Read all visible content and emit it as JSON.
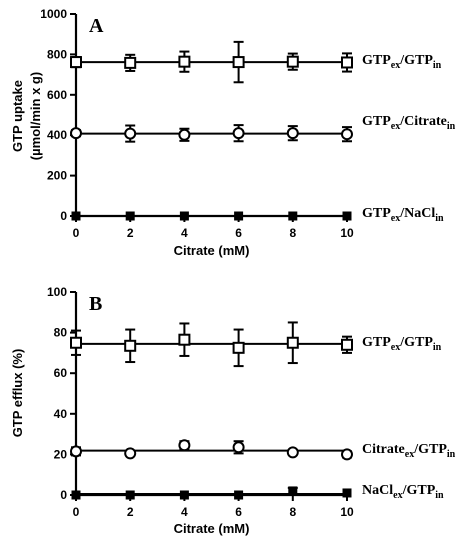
{
  "chart_data": [
    {
      "type": "line",
      "panel_label": "A",
      "xlabel": "Citrate (mM)",
      "ylabel_line1": "GTP uptake",
      "ylabel_line2": "(µmol/min x g)",
      "xlim": [
        0,
        10
      ],
      "ylim": [
        0,
        1000
      ],
      "xticks": [
        0,
        2,
        4,
        6,
        8,
        10
      ],
      "yticks": [
        0,
        200,
        400,
        600,
        800,
        1000
      ],
      "series": [
        {
          "label_parts": [
            [
              "GTP",
              ""
            ],
            [
              "ex",
              "sub"
            ],
            [
              "/GTP",
              ""
            ],
            [
              "in",
              "sub"
            ]
          ],
          "marker": "square-open",
          "x": [
            0,
            2,
            4,
            6,
            8,
            10
          ],
          "y": [
            762,
            758,
            764,
            762,
            764,
            760
          ],
          "err": [
            25,
            40,
            50,
            100,
            40,
            45
          ]
        },
        {
          "label_parts": [
            [
              "GTP",
              ""
            ],
            [
              "ex",
              "sub"
            ],
            [
              "/Citrate",
              ""
            ],
            [
              "in",
              "sub"
            ]
          ],
          "marker": "circle-open",
          "x": [
            0,
            2,
            4,
            6,
            8,
            10
          ],
          "y": [
            410,
            408,
            402,
            410,
            410,
            405
          ],
          "err": [
            15,
            40,
            30,
            40,
            35,
            35
          ]
        },
        {
          "label_parts": [
            [
              "GTP",
              ""
            ],
            [
              "ex",
              "sub"
            ],
            [
              "/NaCl",
              ""
            ],
            [
              "in",
              "sub"
            ]
          ],
          "marker": "square-filled",
          "x": [
            0,
            2,
            4,
            6,
            8,
            10
          ],
          "y": [
            0,
            0,
            0,
            0,
            0,
            0
          ],
          "err": [
            0,
            0,
            0,
            0,
            0,
            0
          ]
        }
      ]
    },
    {
      "type": "line",
      "panel_label": "B",
      "xlabel": "Citrate (mM)",
      "ylabel_line1": "GTP efflux (%)",
      "ylabel_line2": "",
      "xlim": [
        0,
        10
      ],
      "ylim": [
        0,
        100
      ],
      "xticks": [
        0,
        2,
        4,
        6,
        8,
        10
      ],
      "yticks": [
        0,
        20,
        40,
        60,
        80,
        100
      ],
      "series": [
        {
          "label_parts": [
            [
              "GTP",
              ""
            ],
            [
              "ex",
              "sub"
            ],
            [
              "/GTP",
              ""
            ],
            [
              "in",
              "sub"
            ]
          ],
          "marker": "square-open",
          "x": [
            0,
            2,
            4,
            6,
            8,
            10
          ],
          "y": [
            75,
            73.5,
            76.5,
            72.5,
            75,
            74
          ],
          "err": [
            6,
            8,
            8,
            9,
            10,
            4
          ]
        },
        {
          "label_parts": [
            [
              "Citrate",
              ""
            ],
            [
              "ex",
              "sub"
            ],
            [
              "/GTP",
              ""
            ],
            [
              "in",
              "sub"
            ]
          ],
          "marker": "circle-open",
          "x": [
            0,
            2,
            4,
            6,
            8,
            10
          ],
          "y": [
            21.5,
            20.5,
            24.5,
            23.5,
            21,
            20
          ],
          "err": [
            2,
            1,
            2,
            3,
            1,
            1.5
          ]
        },
        {
          "label_parts": [
            [
              "NaCl",
              ""
            ],
            [
              "ex",
              "sub"
            ],
            [
              "/GTP",
              ""
            ],
            [
              "in",
              "sub"
            ]
          ],
          "marker": "square-filled",
          "x": [
            0,
            2,
            4,
            6,
            8,
            10
          ],
          "y": [
            0,
            0,
            0,
            0,
            2,
            1
          ],
          "err": [
            0,
            0,
            0,
            0,
            1.5,
            0
          ]
        }
      ]
    }
  ]
}
